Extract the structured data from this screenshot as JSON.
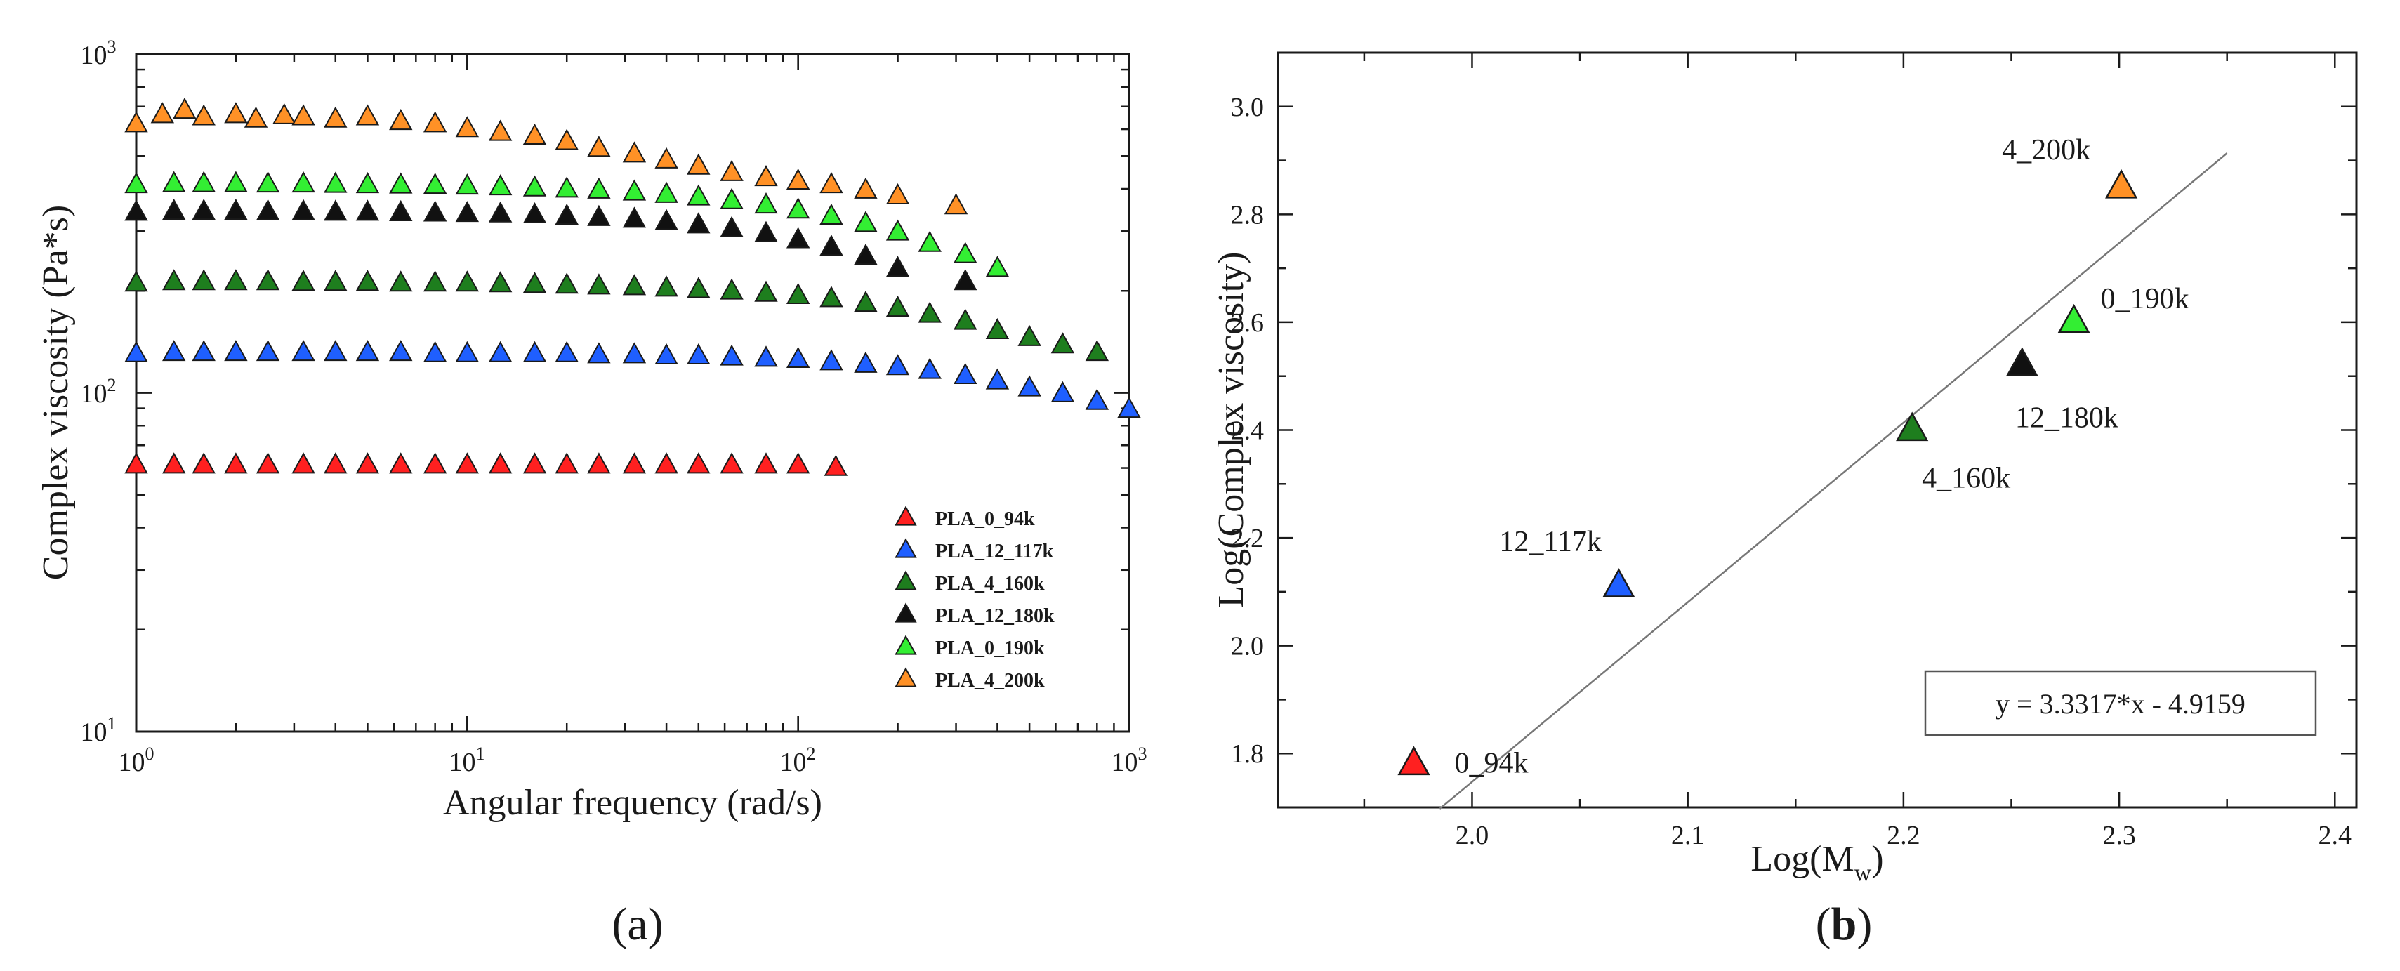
{
  "chart_data": [
    {
      "panel": "a",
      "type": "scatter",
      "xscale": "log",
      "yscale": "log",
      "xlim": [
        1,
        1000
      ],
      "ylim": [
        10,
        1000
      ],
      "xlabel": "Angular frequency (rad/s)",
      "ylabel": "Complex viscosity (Pa*s)",
      "x_tick_labels": [
        {
          "base": "10",
          "exp": "0",
          "value": 1
        },
        {
          "base": "10",
          "exp": "1",
          "value": 10
        },
        {
          "base": "10",
          "exp": "2",
          "value": 100
        },
        {
          "base": "10",
          "exp": "3",
          "value": 1000
        }
      ],
      "y_tick_labels": [
        {
          "base": "10",
          "exp": "1",
          "value": 10
        },
        {
          "base": "10",
          "exp": "2",
          "value": 100
        },
        {
          "base": "10",
          "exp": "3",
          "value": 1000
        }
      ],
      "legend_position": "bottom-right",
      "marker": "triangle",
      "series": [
        {
          "name": "PLA_0_94k",
          "color": "#ff2020",
          "points": [
            [
              1,
              61
            ],
            [
              1.3,
              61
            ],
            [
              1.6,
              61
            ],
            [
              2,
              61
            ],
            [
              2.5,
              61
            ],
            [
              3.2,
              61
            ],
            [
              4,
              61
            ],
            [
              5,
              61
            ],
            [
              6.3,
              61
            ],
            [
              8,
              61
            ],
            [
              10,
              61
            ],
            [
              12.6,
              61
            ],
            [
              16,
              61
            ],
            [
              20,
              61
            ],
            [
              25,
              61
            ],
            [
              32,
              61
            ],
            [
              40,
              61
            ],
            [
              50,
              61
            ],
            [
              63,
              61
            ],
            [
              80,
              61
            ],
            [
              100,
              61
            ],
            [
              130,
              60
            ]
          ]
        },
        {
          "name": "PLA_12_117k",
          "color": "#1f5fff",
          "points": [
            [
              1,
              130
            ],
            [
              1.3,
              131
            ],
            [
              1.6,
              131
            ],
            [
              2,
              131
            ],
            [
              2.5,
              131
            ],
            [
              3.2,
              131
            ],
            [
              4,
              131
            ],
            [
              5,
              131
            ],
            [
              6.3,
              131
            ],
            [
              8,
              130
            ],
            [
              10,
              130
            ],
            [
              12.6,
              130
            ],
            [
              16,
              130
            ],
            [
              20,
              130
            ],
            [
              25,
              129
            ],
            [
              32,
              129
            ],
            [
              40,
              128
            ],
            [
              50,
              128
            ],
            [
              63,
              127
            ],
            [
              80,
              126
            ],
            [
              100,
              125
            ],
            [
              126,
              123
            ],
            [
              160,
              121
            ],
            [
              200,
              119
            ],
            [
              250,
              116
            ],
            [
              320,
              112
            ],
            [
              400,
              108
            ],
            [
              500,
              103
            ],
            [
              630,
              99
            ],
            [
              800,
              94
            ],
            [
              1000,
              89
            ]
          ]
        },
        {
          "name": "PLA_4_160k",
          "color": "#1e7e1e",
          "points": [
            [
              1,
              210
            ],
            [
              1.3,
              212
            ],
            [
              1.6,
              212
            ],
            [
              2,
              212
            ],
            [
              2.5,
              212
            ],
            [
              3.2,
              211
            ],
            [
              4,
              211
            ],
            [
              5,
              211
            ],
            [
              6.3,
              210
            ],
            [
              8,
              210
            ],
            [
              10,
              210
            ],
            [
              12.6,
              209
            ],
            [
              16,
              208
            ],
            [
              20,
              207
            ],
            [
              25,
              206
            ],
            [
              32,
              205
            ],
            [
              40,
              203
            ],
            [
              50,
              201
            ],
            [
              63,
              199
            ],
            [
              80,
              196
            ],
            [
              100,
              193
            ],
            [
              126,
              189
            ],
            [
              160,
              183
            ],
            [
              200,
              177
            ],
            [
              250,
              170
            ],
            [
              320,
              162
            ],
            [
              400,
              152
            ],
            [
              500,
              145
            ],
            [
              630,
              138
            ],
            [
              800,
              131
            ]
          ]
        },
        {
          "name": "PLA_12_180k",
          "color": "#111111",
          "points": [
            [
              1,
              340
            ],
            [
              1.3,
              342
            ],
            [
              1.6,
              342
            ],
            [
              2,
              342
            ],
            [
              2.5,
              341
            ],
            [
              3.2,
              341
            ],
            [
              4,
              340
            ],
            [
              5,
              340
            ],
            [
              6.3,
              339
            ],
            [
              8,
              338
            ],
            [
              10,
              337
            ],
            [
              12.6,
              336
            ],
            [
              16,
              334
            ],
            [
              20,
              331
            ],
            [
              25,
              328
            ],
            [
              32,
              324
            ],
            [
              40,
              319
            ],
            [
              50,
              312
            ],
            [
              63,
              304
            ],
            [
              80,
              294
            ],
            [
              100,
              282
            ],
            [
              126,
              268
            ],
            [
              160,
              252
            ],
            [
              200,
              232
            ],
            [
              320,
              212
            ]
          ]
        },
        {
          "name": "PLA_0_190k",
          "color": "#33ee33",
          "points": [
            [
              1,
              410
            ],
            [
              1.3,
              413
            ],
            [
              1.6,
              413
            ],
            [
              2,
              413
            ],
            [
              2.5,
              412
            ],
            [
              3.2,
              412
            ],
            [
              4,
              411
            ],
            [
              5,
              410
            ],
            [
              6.3,
              409
            ],
            [
              8,
              408
            ],
            [
              10,
              406
            ],
            [
              12.6,
              404
            ],
            [
              16,
              401
            ],
            [
              20,
              398
            ],
            [
              25,
              395
            ],
            [
              32,
              390
            ],
            [
              40,
              384
            ],
            [
              50,
              377
            ],
            [
              63,
              368
            ],
            [
              80,
              357
            ],
            [
              100,
              345
            ],
            [
              126,
              331
            ],
            [
              160,
              315
            ],
            [
              200,
              297
            ],
            [
              250,
              275
            ],
            [
              320,
              255
            ],
            [
              400,
              232
            ]
          ]
        },
        {
          "name": "PLA_4_200k",
          "color": "#ff9126",
          "points": [
            [
              1,
              620
            ],
            [
              1.2,
              660
            ],
            [
              1.4,
              680
            ],
            [
              1.6,
              650
            ],
            [
              2,
              660
            ],
            [
              2.3,
              640
            ],
            [
              2.8,
              655
            ],
            [
              3.2,
              650
            ],
            [
              4,
              640
            ],
            [
              5,
              650
            ],
            [
              6.3,
              630
            ],
            [
              8,
              620
            ],
            [
              10,
              600
            ],
            [
              12.6,
              585
            ],
            [
              16,
              570
            ],
            [
              20,
              550
            ],
            [
              25,
              525
            ],
            [
              32,
              505
            ],
            [
              40,
              485
            ],
            [
              50,
              465
            ],
            [
              63,
              445
            ],
            [
              80,
              430
            ],
            [
              100,
              420
            ],
            [
              126,
              410
            ],
            [
              160,
              395
            ],
            [
              200,
              380
            ],
            [
              300,
              355
            ]
          ]
        }
      ]
    },
    {
      "panel": "b",
      "type": "scatter",
      "xlim": [
        1.91,
        2.41
      ],
      "ylim": [
        1.7,
        3.1
      ],
      "xticks": [
        2.0,
        2.1,
        2.2,
        2.3,
        2.4
      ],
      "yticks": [
        1.8,
        2.0,
        2.2,
        2.4,
        2.6,
        2.8,
        3.0
      ],
      "x_tick_labels": [
        "2.0",
        "2.1",
        "2.2",
        "2.3",
        "2.4"
      ],
      "y_tick_labels": [
        "1.8",
        "2.0",
        "2.2",
        "2.4",
        "2.6",
        "2.8",
        "3.0"
      ],
      "xlabel": {
        "main": "Log(M",
        "sub": "w",
        "tail": ")"
      },
      "ylabel": "Log(Complex viscosity)",
      "marker": "triangle",
      "points": [
        {
          "label": "0_94k",
          "x": 1.973,
          "y": 1.78,
          "color": "#ff2020"
        },
        {
          "label": "12_117k",
          "x": 2.068,
          "y": 2.11,
          "color": "#1f5fff"
        },
        {
          "label": "4_160k",
          "x": 2.204,
          "y": 2.4,
          "color": "#1e7e1e"
        },
        {
          "label": "12_180k",
          "x": 2.255,
          "y": 2.52,
          "color": "#111111"
        },
        {
          "label": "0_190k",
          "x": 2.279,
          "y": 2.6,
          "color": "#33ee33"
        },
        {
          "label": "4_200k",
          "x": 2.301,
          "y": 2.85,
          "color": "#ff9126"
        }
      ],
      "fit": {
        "slope": 3.3317,
        "intercept": -4.9159,
        "x_range": [
          1.985,
          2.35
        ],
        "equation": "y = 3.3317*x - 4.9159"
      }
    }
  ],
  "captions": {
    "a": "a",
    "b": "b"
  }
}
